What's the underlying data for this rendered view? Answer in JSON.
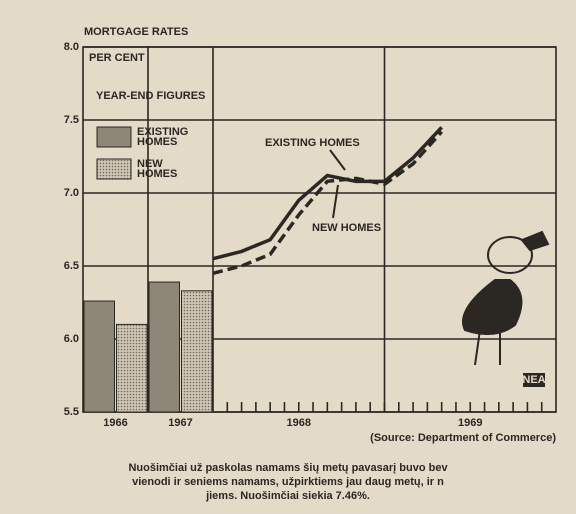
{
  "chart_data": [
    {
      "type": "bar",
      "title": "MORTGAGE RATES",
      "y_label": "PER CENT",
      "note": "YEAR-END FIGURES",
      "categories": [
        "1966",
        "1967"
      ],
      "series": [
        {
          "name": "EXISTING HOMES",
          "color": "#8e8676",
          "values": [
            6.26,
            6.39
          ]
        },
        {
          "name": "NEW HOMES",
          "color": "#bdb3a1",
          "values": [
            6.1,
            6.33
          ]
        }
      ],
      "ylim": [
        5.5,
        8.0
      ],
      "yticks": [
        5.5,
        {
          "value": 6,
          "label": "6.0"
        },
        6.5,
        {
          "value": 7,
          "label": "7.0"
        },
        7.5,
        {
          "value": 8,
          "label": "8.0"
        }
      ],
      "grid": true
    },
    {
      "type": "line",
      "categories": [
        "1968",
        "1969"
      ],
      "x": [
        0,
        2,
        4,
        6,
        8,
        10,
        12,
        14,
        16
      ],
      "xlim": [
        0,
        24
      ],
      "series": [
        {
          "name": "EXISTING HOMES",
          "color": "#2b2722",
          "dash": false,
          "values": [
            6.55,
            6.6,
            6.68,
            6.95,
            7.12,
            7.08,
            7.08,
            7.24,
            7.45
          ]
        },
        {
          "name": "NEW HOMES",
          "color": "#2b2722",
          "dash": true,
          "values": [
            6.45,
            6.5,
            6.58,
            6.85,
            7.08,
            7.1,
            7.06,
            7.2,
            7.42
          ]
        }
      ],
      "ylim": [
        5.5,
        8.0
      ],
      "source": "(Source: Department of Commerce)"
    }
  ],
  "logo": "NEA",
  "caption": [
    "Nuošimčiai už paskolas namams šių metų pavasarį buvo bev",
    "vienodi ir seniems namams, užpirktiems jau daug metų, ir n",
    "jiems. Nuošimčiai siekia 7.46%."
  ]
}
